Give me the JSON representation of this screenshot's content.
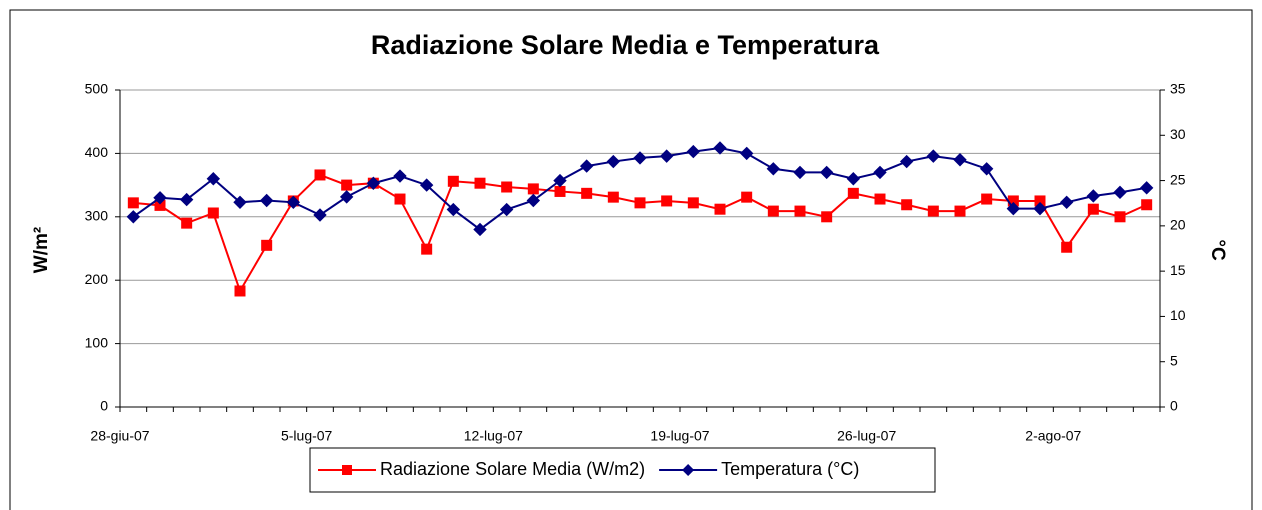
{
  "chart_data": {
    "type": "line",
    "title": "Radiazione Solare Media e Temperatura",
    "y_label": "W/m²",
    "y2_label": "°C",
    "categories": [
      "28-giu-07",
      null,
      null,
      null,
      null,
      null,
      null,
      "5-lug-07",
      null,
      null,
      null,
      null,
      null,
      null,
      "12-lug-07",
      null,
      null,
      null,
      null,
      null,
      null,
      "19-lug-07",
      null,
      null,
      null,
      null,
      null,
      null,
      "26-lug-07",
      null,
      null,
      null,
      null,
      null,
      null,
      "2-ago-07",
      null,
      null,
      null
    ],
    "series": [
      {
        "name": "Radiazione Solare Media (W/m2)",
        "color": "#ff0000",
        "marker": "square",
        "values": [
          322,
          318,
          290,
          306,
          183,
          255,
          325,
          366,
          350,
          353,
          328,
          249,
          356,
          353,
          347,
          344,
          340,
          337,
          331,
          322,
          325,
          322,
          312,
          331,
          309,
          309,
          300,
          337,
          328,
          319,
          309,
          309,
          328,
          325,
          325,
          252,
          312,
          300,
          319
        ]
      },
      {
        "name": "Temperatura (°C)",
        "color": "#000080",
        "marker": "diamond",
        "axis": "y2",
        "values": [
          21.0,
          23.1,
          22.9,
          25.2,
          22.6,
          22.8,
          22.6,
          21.2,
          23.2,
          24.7,
          25.5,
          24.5,
          21.8,
          19.6,
          21.8,
          22.8,
          25.0,
          26.6,
          27.1,
          27.5,
          27.7,
          28.2,
          28.6,
          28.0,
          26.3,
          25.9,
          25.9,
          25.2,
          25.9,
          27.1,
          27.7,
          27.3,
          26.3,
          21.9,
          21.9,
          22.6,
          23.3,
          23.7,
          24.2
        ]
      }
    ],
    "ylim": [
      0,
      500
    ],
    "yticks": [
      0,
      100,
      200,
      300,
      400,
      500
    ],
    "y2lim": [
      0,
      35
    ],
    "y2ticks": [
      0,
      5,
      10,
      15,
      20,
      25,
      30,
      35
    ],
    "grid": true,
    "legend": "bottom"
  }
}
